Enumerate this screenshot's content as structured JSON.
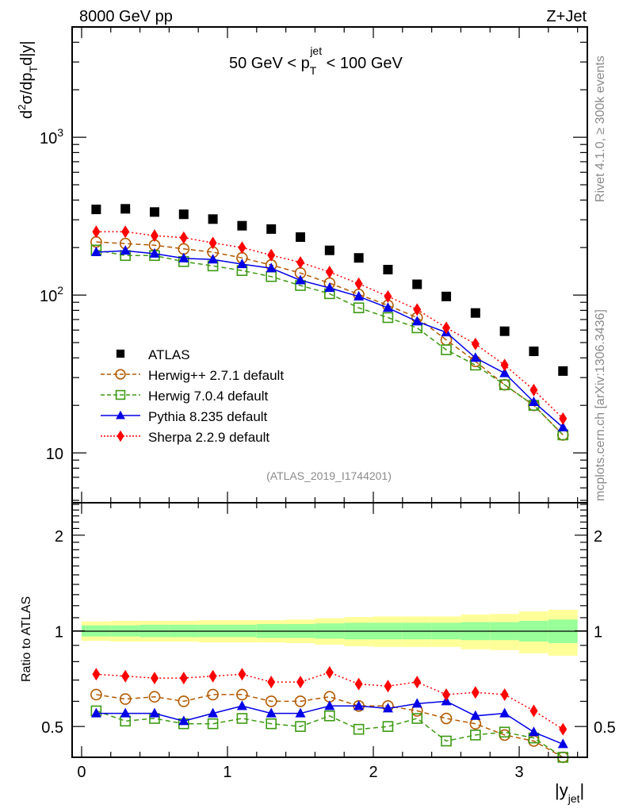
{
  "header": {
    "left_label": "8000 GeV pp",
    "right_label": "Z+Jet"
  },
  "side_labels": {
    "rivet": "Rivet 4.1.0, ≥ 300k events",
    "mcplots": "mcplots.cern.ch [arXiv:1306.3436]"
  },
  "chart_data": [
    {
      "type": "scatter",
      "panel": "main",
      "title_parts": {
        "prefix": "50 GeV < p",
        "sub": "T",
        "sup": "jet",
        "suffix": " < 100 GeV"
      },
      "ylabel_parts": {
        "d": "d",
        "sup2": "2",
        "mid": "σ/dp",
        "sub": "T",
        "end": "d|y|"
      },
      "yscale": "log",
      "ylim": [
        4.83,
        5000
      ],
      "xlim": [
        -0.065,
        3.467
      ],
      "ytick_labels": [
        {
          "value": 10,
          "text": "10",
          "exp": ""
        },
        {
          "value": 100,
          "text": "10",
          "exp": "2"
        },
        {
          "value": 1000,
          "text": "10",
          "exp": "3"
        }
      ],
      "analysis_label": "(ATLAS_2019_I1744201)",
      "legend_position": "lower-left",
      "x": [
        0.1,
        0.3,
        0.5,
        0.7,
        0.9,
        1.1,
        1.3,
        1.5,
        1.7,
        1.9,
        2.1,
        2.3,
        2.5,
        2.7,
        2.9,
        3.1,
        3.3
      ],
      "series": [
        {
          "name": "ATLAS",
          "color": "#000000",
          "marker": "square",
          "line": "none",
          "values": [
            349,
            352,
            336,
            325,
            303,
            275,
            262,
            233,
            192,
            172,
            145,
            117,
            98,
            77,
            59,
            44,
            33
          ]
        },
        {
          "name": "Herwig++ 2.7.1 default",
          "color": "#b35900",
          "marker": "open-circle",
          "line": "dashed",
          "values": [
            217,
            212,
            207,
            196,
            187,
            172,
            155,
            138,
            119,
            101,
            86,
            72,
            52,
            38,
            27,
            20,
            13
          ]
        },
        {
          "name": "Herwig 7.0.4 default",
          "color": "#3c9a12",
          "marker": "open-square",
          "line": "dashed",
          "values": [
            193,
            178,
            178,
            163,
            153,
            143,
            131,
            115,
            102,
            83,
            72,
            62,
            45,
            36,
            27,
            20,
            13
          ]
        },
        {
          "name": "Pythia 8.235 default",
          "color": "#0000e6",
          "marker": "triangle",
          "line": "solid",
          "values": [
            187,
            191,
            183,
            171,
            168,
            157,
            148,
            124,
            111,
            98,
            83,
            68,
            58,
            40,
            32,
            21,
            14.5
          ]
        },
        {
          "name": "Sherpa 2.2.9 default",
          "color": "#ff0000",
          "marker": "diamond",
          "line": "dotted",
          "values": [
            252,
            252,
            238,
            231,
            214,
            200,
            179,
            161,
            140,
            118,
            98,
            81,
            62,
            49,
            36,
            25,
            16.5
          ]
        }
      ]
    },
    {
      "type": "line",
      "panel": "ratio",
      "ylabel": "Ratio to ATLAS",
      "xlabel_parts": {
        "main": "|y",
        "sub": "jet",
        "end": "|"
      },
      "yscale": "log",
      "ylim": [
        0.4,
        2.53
      ],
      "xlim": [
        -0.065,
        3.467
      ],
      "ytick_labels": [
        {
          "value": 0.5,
          "text": "0.5"
        },
        {
          "value": 1,
          "text": "1"
        },
        {
          "value": 2,
          "text": "2"
        }
      ],
      "xtick_labels": [
        {
          "value": 0,
          "text": "0"
        },
        {
          "value": 1,
          "text": "1"
        },
        {
          "value": 2,
          "text": "2"
        },
        {
          "value": 3,
          "text": "3"
        }
      ],
      "x_edges": [
        0.0,
        0.2,
        0.4,
        0.6,
        0.8,
        1.0,
        1.2,
        1.4,
        1.6,
        1.8,
        2.0,
        2.2,
        2.4,
        2.6,
        2.8,
        3.0,
        3.2,
        3.4
      ],
      "band_stat_halfwidth": [
        0.04,
        0.04,
        0.045,
        0.045,
        0.045,
        0.045,
        0.05,
        0.05,
        0.055,
        0.06,
        0.06,
        0.06,
        0.06,
        0.065,
        0.065,
        0.075,
        0.085
      ],
      "band_total_halfwidth": [
        0.07,
        0.075,
        0.075,
        0.075,
        0.08,
        0.08,
        0.08,
        0.085,
        0.095,
        0.105,
        0.11,
        0.11,
        0.11,
        0.125,
        0.13,
        0.15,
        0.165
      ],
      "series": [
        {
          "name": "Herwig++ 2.7.1 default",
          "color": "#b35900",
          "marker": "open-circle",
          "line": "dashed",
          "values": [
            0.63,
            0.61,
            0.62,
            0.6,
            0.63,
            0.63,
            0.6,
            0.6,
            0.62,
            0.58,
            0.58,
            0.56,
            0.53,
            0.51,
            0.47,
            0.45,
            0.4
          ]
        },
        {
          "name": "Herwig 7.0.4 default",
          "color": "#3c9a12",
          "marker": "open-square",
          "line": "dashed",
          "values": [
            0.56,
            0.52,
            0.53,
            0.51,
            0.51,
            0.53,
            0.51,
            0.5,
            0.54,
            0.49,
            0.5,
            0.53,
            0.45,
            0.47,
            0.48,
            0.46,
            0.4
          ]
        },
        {
          "name": "Pythia 8.235 default",
          "color": "#0000e6",
          "marker": "triangle",
          "line": "solid",
          "values": [
            0.55,
            0.55,
            0.55,
            0.52,
            0.55,
            0.58,
            0.55,
            0.55,
            0.58,
            0.58,
            0.57,
            0.59,
            0.6,
            0.54,
            0.55,
            0.48,
            0.44
          ]
        },
        {
          "name": "Sherpa 2.2.9 default",
          "color": "#ff0000",
          "marker": "diamond",
          "line": "dotted",
          "values": [
            0.73,
            0.72,
            0.71,
            0.71,
            0.72,
            0.73,
            0.69,
            0.69,
            0.74,
            0.68,
            0.67,
            0.69,
            0.63,
            0.64,
            0.63,
            0.56,
            0.49
          ]
        }
      ]
    }
  ]
}
